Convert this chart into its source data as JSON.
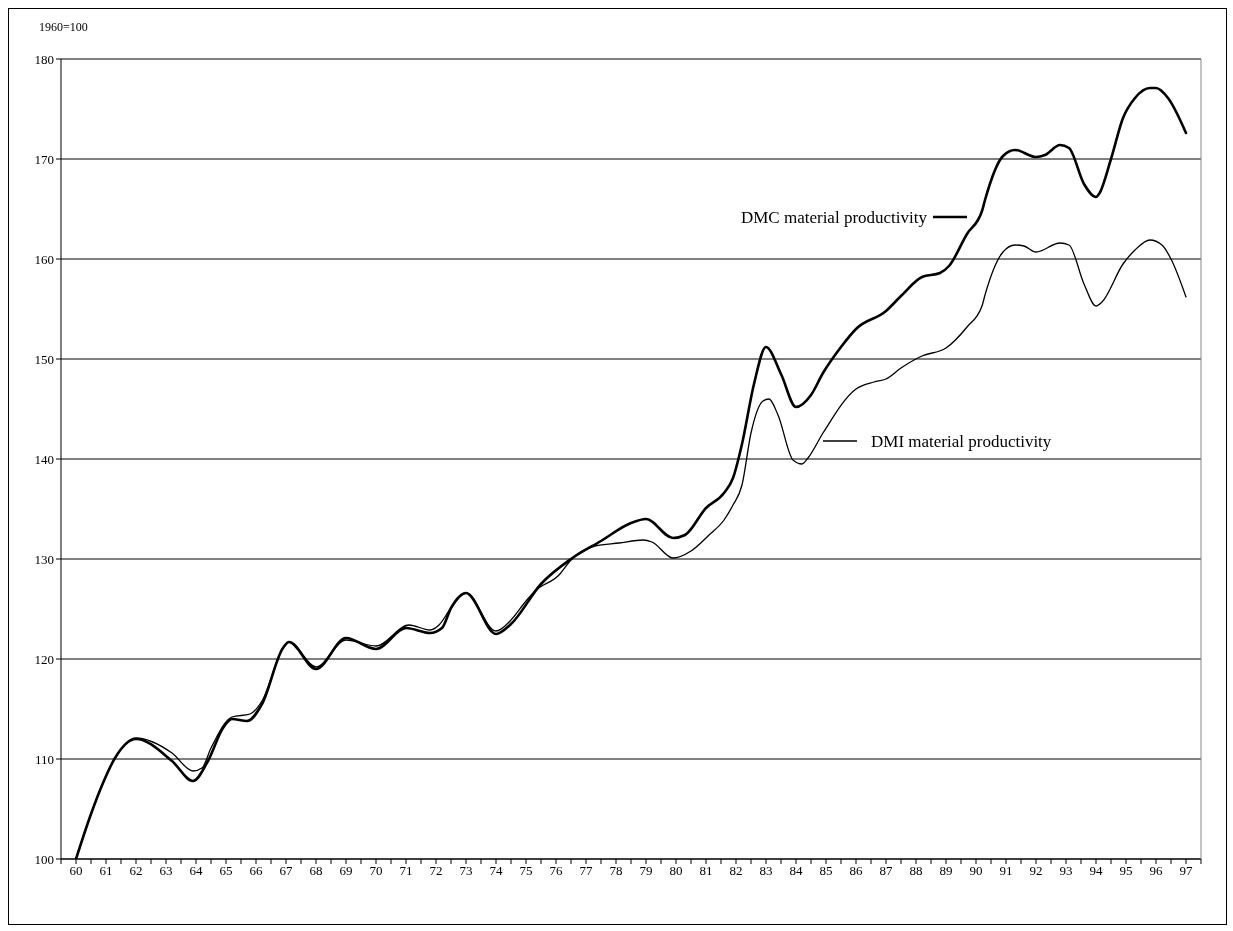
{
  "chart_data": {
    "type": "line",
    "ylabel": "1960=100",
    "xlim": [
      1959.5,
      1997.5
    ],
    "xticks": [
      {
        "value": 1959.5,
        "label": null
      },
      {
        "value": 1960,
        "label": "60"
      },
      {
        "value": 1960.5,
        "label": null
      },
      {
        "value": 1961,
        "label": "61"
      },
      {
        "value": 1961.5,
        "label": null
      },
      {
        "value": 1962,
        "label": "62"
      },
      {
        "value": 1962.5,
        "label": null
      },
      {
        "value": 1963,
        "label": "63"
      },
      {
        "value": 1963.5,
        "label": null
      },
      {
        "value": 1964,
        "label": "64"
      },
      {
        "value": 1964.5,
        "label": null
      },
      {
        "value": 1965,
        "label": "65"
      },
      {
        "value": 1965.5,
        "label": null
      },
      {
        "value": 1966,
        "label": "66"
      },
      {
        "value": 1966.5,
        "label": null
      },
      {
        "value": 1967,
        "label": "67"
      },
      {
        "value": 1967.5,
        "label": null
      },
      {
        "value": 1968,
        "label": "68"
      },
      {
        "value": 1968.5,
        "label": null
      },
      {
        "value": 1969,
        "label": "69"
      },
      {
        "value": 1969.5,
        "label": null
      },
      {
        "value": 1970,
        "label": "70"
      },
      {
        "value": 1970.5,
        "label": null
      },
      {
        "value": 1971,
        "label": "71"
      },
      {
        "value": 1971.5,
        "label": null
      },
      {
        "value": 1972,
        "label": "72"
      },
      {
        "value": 1972.5,
        "label": null
      },
      {
        "value": 1973,
        "label": "73"
      },
      {
        "value": 1973.5,
        "label": null
      },
      {
        "value": 1974,
        "label": "74"
      },
      {
        "value": 1974.5,
        "label": null
      },
      {
        "value": 1975,
        "label": "75"
      },
      {
        "value": 1975.5,
        "label": null
      },
      {
        "value": 1976,
        "label": "76"
      },
      {
        "value": 1976.5,
        "label": null
      },
      {
        "value": 1977,
        "label": "77"
      },
      {
        "value": 1977.5,
        "label": null
      },
      {
        "value": 1978,
        "label": "78"
      },
      {
        "value": 1978.5,
        "label": null
      },
      {
        "value": 1979,
        "label": "79"
      },
      {
        "value": 1979.5,
        "label": null
      },
      {
        "value": 1980,
        "label": "80"
      },
      {
        "value": 1980.5,
        "label": null
      },
      {
        "value": 1981,
        "label": "81"
      },
      {
        "value": 1981.5,
        "label": null
      },
      {
        "value": 1982,
        "label": "82"
      },
      {
        "value": 1982.5,
        "label": null
      },
      {
        "value": 1983,
        "label": "83"
      },
      {
        "value": 1983.5,
        "label": null
      },
      {
        "value": 1984,
        "label": "84"
      },
      {
        "value": 1984.5,
        "label": null
      },
      {
        "value": 1985,
        "label": "85"
      },
      {
        "value": 1985.5,
        "label": null
      },
      {
        "value": 1986,
        "label": "86"
      },
      {
        "value": 1986.5,
        "label": null
      },
      {
        "value": 1987,
        "label": "87"
      },
      {
        "value": 1987.5,
        "label": null
      },
      {
        "value": 1988,
        "label": "88"
      },
      {
        "value": 1988.5,
        "label": null
      },
      {
        "value": 1989,
        "label": "89"
      },
      {
        "value": 1989.5,
        "label": null
      },
      {
        "value": 1990,
        "label": "90"
      },
      {
        "value": 1990.5,
        "label": null
      },
      {
        "value": 1991,
        "label": "91"
      },
      {
        "value": 1991.5,
        "label": null
      },
      {
        "value": 1992,
        "label": "92"
      },
      {
        "value": 1992.5,
        "label": null
      },
      {
        "value": 1993,
        "label": "93"
      },
      {
        "value": 1993.5,
        "label": null
      },
      {
        "value": 1994,
        "label": "94"
      },
      {
        "value": 1994.5,
        "label": null
      },
      {
        "value": 1995,
        "label": "95"
      },
      {
        "value": 1995.5,
        "label": null
      },
      {
        "value": 1996,
        "label": "96"
      },
      {
        "value": 1996.5,
        "label": null
      },
      {
        "value": 1997,
        "label": "97"
      },
      {
        "value": 1997.5,
        "label": null
      }
    ],
    "ylim": [
      100,
      180
    ],
    "yticks": [
      100,
      110,
      120,
      130,
      140,
      150,
      160,
      170,
      180
    ],
    "grid": "y",
    "marker": "none",
    "line_style": "solid",
    "series": [
      {
        "name": "DMC material productivity",
        "color": "#000000",
        "x": [
          1960,
          1960.5,
          1960.9,
          1961.3,
          1962,
          1963.2,
          1963.9,
          1964.4,
          1964.9,
          1965.2,
          1965.7,
          1966.2,
          1966.9,
          1967.1,
          1968,
          1969,
          1970,
          1971,
          1971.8,
          1972.2,
          1972.5,
          1973,
          1974,
          1974.5,
          1975.5,
          1976.5,
          1977.5,
          1978.5,
          1979,
          1979.9,
          1980.3,
          1981,
          1981.6,
          1981.9,
          1982.2,
          1982.6,
          1983,
          1983.5,
          1984,
          1984.5,
          1984.9,
          1985.5,
          1986,
          1987,
          1987.5,
          1988.2,
          1988.8,
          1989.1,
          1989.7,
          1990.2,
          1990.3,
          1990.9,
          1991.3,
          1992,
          1992.3,
          1992.8,
          1993.1,
          1993.6,
          1994,
          1994.1,
          1994.5,
          1994.9,
          1995.3,
          1995.8,
          1996,
          1996.4,
          1997
        ],
        "values": [
          100,
          104.5,
          107.6,
          110.1,
          112,
          109.8,
          107.8,
          109.8,
          113.1,
          114,
          113.8,
          115.5,
          121.1,
          121.7,
          119,
          122.1,
          121,
          123.1,
          122.6,
          123.1,
          125.1,
          126.6,
          122.5,
          123.5,
          127.5,
          130,
          131.8,
          133.6,
          134,
          132.1,
          132.4,
          135.1,
          136.6,
          138.1,
          141.5,
          147.5,
          151.2,
          148.5,
          145.2,
          146.4,
          148.6,
          151.2,
          153,
          154.8,
          156.3,
          158.2,
          158.6,
          159.3,
          162.5,
          164.8,
          165.9,
          170.3,
          170.9,
          170.2,
          170.4,
          171.4,
          171.1,
          167.5,
          166.2,
          166.5,
          170,
          174.1,
          176.1,
          177.1,
          177.1,
          176.1,
          172.6
        ]
      },
      {
        "name": "DMI material productivity",
        "color": "#000000",
        "x": [
          1960,
          1960.5,
          1960.9,
          1961.3,
          1962,
          1963.2,
          1963.9,
          1964.2,
          1964.5,
          1965.2,
          1965.8,
          1966.2,
          1966.9,
          1967.1,
          1968,
          1969,
          1970,
          1971.1,
          1971.8,
          1972.1,
          1972.5,
          1973,
          1974,
          1974.5,
          1975,
          1975.3,
          1976.1,
          1976.5,
          1977.3,
          1978.1,
          1978.9,
          1979.2,
          1979.9,
          1980.5,
          1981.1,
          1981.6,
          1981.9,
          1982.2,
          1982.5,
          1982.9,
          1983.1,
          1983.4,
          1983.9,
          1984.2,
          1984.4,
          1984.9,
          1986,
          1986.6,
          1987,
          1987.5,
          1988.2,
          1989,
          1989.7,
          1990.2,
          1990.3,
          1990.9,
          1991.3,
          1991.6,
          1992,
          1992.8,
          1993.1,
          1993.6,
          1994,
          1994.2,
          1994.9,
          1995.3,
          1995.8,
          1996.2,
          1996.5,
          1997
        ],
        "values": [
          100,
          104.5,
          107.6,
          110.1,
          112.1,
          110.6,
          108.8,
          109.1,
          111.1,
          114.2,
          114.5,
          115.8,
          121.1,
          121.7,
          119.2,
          121.9,
          121.3,
          123.4,
          122.9,
          123.4,
          125.1,
          126.6,
          122.8,
          123.9,
          125.8,
          126.8,
          128.4,
          129.9,
          131.3,
          131.6,
          131.9,
          131.7,
          130.1,
          130.8,
          132.4,
          133.9,
          135.4,
          137.4,
          142.6,
          145.8,
          146,
          144.4,
          139.9,
          139.5,
          140.1,
          142.6,
          147,
          147.7,
          148,
          149.1,
          150.3,
          151.1,
          153.2,
          155.3,
          156.4,
          160.7,
          161.4,
          161.3,
          160.7,
          161.6,
          161.4,
          157.5,
          155.3,
          155.7,
          159.5,
          160.9,
          161.9,
          161.4,
          160,
          156.2
        ]
      }
    ]
  }
}
